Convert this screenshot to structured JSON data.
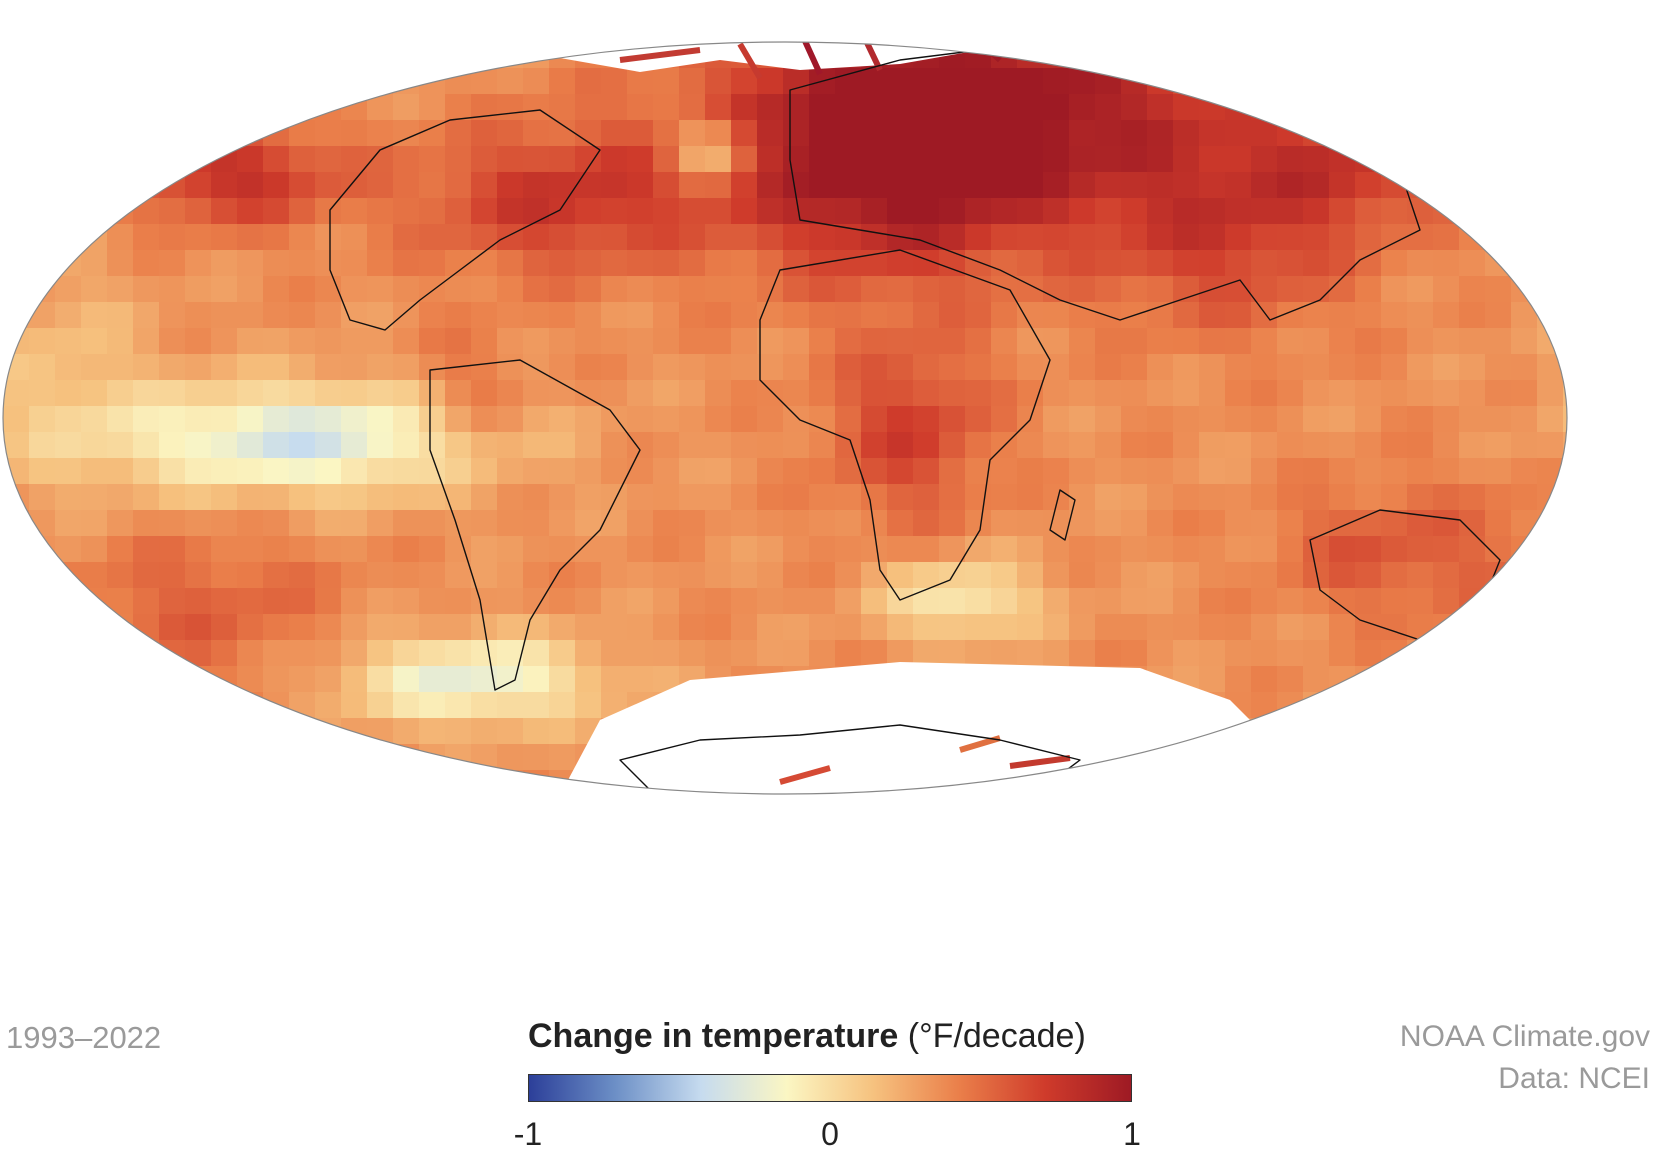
{
  "period": "1993–2022",
  "legend": {
    "title_bold": "Change in temperature",
    "title_unit": "(°F/decade)",
    "ticks": [
      "-1",
      "0",
      "1"
    ],
    "colors": [
      "#2c3f99",
      "#6c8fc6",
      "#c6dbef",
      "#fbf6c3",
      "#f6c27f",
      "#ea7f4a",
      "#cf3b2b",
      "#9e1a24"
    ]
  },
  "credits": {
    "source": "NOAA Climate.gov",
    "data": "Data: NCEI"
  },
  "map": {
    "projection": "Mollweide",
    "range": [
      -1,
      1
    ],
    "base_value": 0.35
  },
  "colors": {
    "background": "#ffffff",
    "outline": "#888888",
    "coastline": "#111111",
    "no_data": "#ffffff"
  }
}
